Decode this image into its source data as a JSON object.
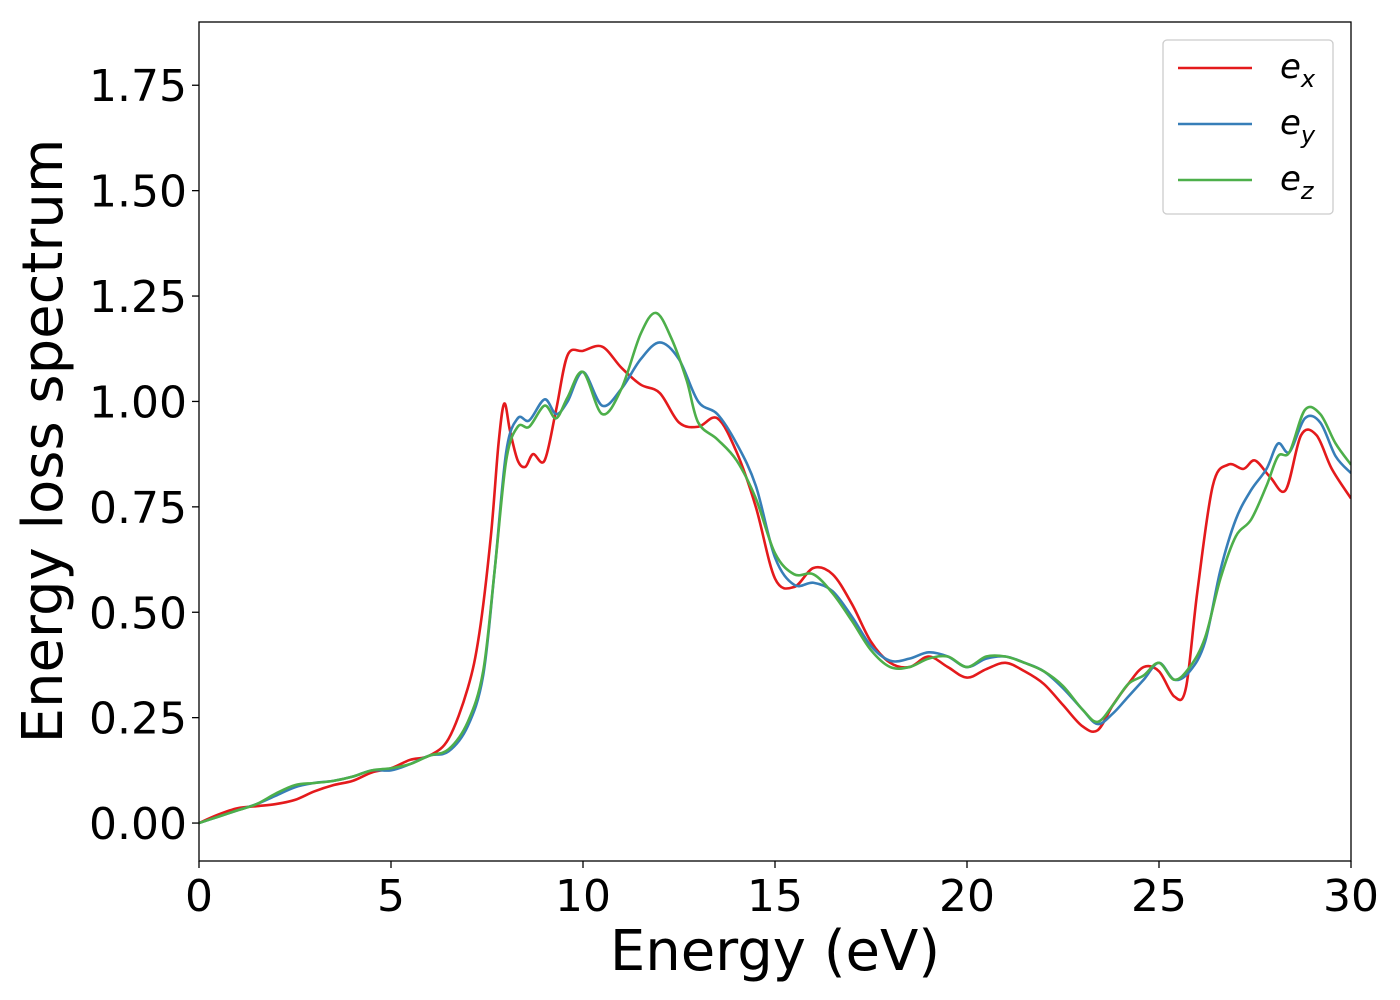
{
  "chart_data": {
    "type": "line",
    "title": "",
    "xlabel": "Energy (eV)",
    "ylabel": "Energy loss spectrum",
    "xlim": [
      0,
      30
    ],
    "ylim": [
      -0.09,
      1.9
    ],
    "xticks": [
      0,
      5,
      10,
      15,
      20,
      25,
      30
    ],
    "xtick_labels": [
      "0",
      "5",
      "10",
      "15",
      "20",
      "25",
      "30"
    ],
    "yticks": [
      0.0,
      0.25,
      0.5,
      0.75,
      1.0,
      1.25,
      1.5,
      1.75
    ],
    "ytick_labels": [
      "0.00",
      "0.25",
      "0.50",
      "0.75",
      "1.00",
      "1.25",
      "1.50",
      "1.75"
    ],
    "grid": false,
    "legend_position": "top-right",
    "series": [
      {
        "name": "e_x",
        "label_main": "e",
        "label_sub": "x",
        "color": "#e41a1c",
        "x": [
          0,
          0.5,
          1,
          1.5,
          2,
          2.5,
          3,
          3.5,
          4,
          4.5,
          5,
          5.5,
          6,
          6.5,
          7,
          7.3,
          7.6,
          7.8,
          7.95,
          8.1,
          8.3,
          8.5,
          8.7,
          9,
          9.3,
          9.6,
          10,
          10.5,
          11,
          11.5,
          12,
          12.5,
          13,
          13.5,
          14,
          14.5,
          15,
          15.5,
          16,
          16.5,
          17,
          17.5,
          18,
          18.5,
          19,
          19.5,
          20,
          20.5,
          21,
          21.5,
          22,
          22.5,
          23,
          23.4,
          23.8,
          24.2,
          24.6,
          25,
          25.4,
          25.7,
          26,
          26.4,
          26.8,
          27.2,
          27.5,
          27.9,
          28.3,
          28.7,
          29.1,
          29.5,
          30
        ],
        "y": [
          0.0,
          0.02,
          0.035,
          0.04,
          0.045,
          0.055,
          0.075,
          0.09,
          0.1,
          0.12,
          0.13,
          0.15,
          0.16,
          0.2,
          0.32,
          0.45,
          0.68,
          0.9,
          0.995,
          0.93,
          0.86,
          0.845,
          0.875,
          0.86,
          0.98,
          1.11,
          1.12,
          1.13,
          1.08,
          1.04,
          1.02,
          0.95,
          0.94,
          0.96,
          0.88,
          0.75,
          0.58,
          0.56,
          0.605,
          0.59,
          0.52,
          0.43,
          0.38,
          0.37,
          0.395,
          0.37,
          0.345,
          0.365,
          0.38,
          0.36,
          0.33,
          0.28,
          0.23,
          0.22,
          0.28,
          0.33,
          0.37,
          0.36,
          0.3,
          0.32,
          0.55,
          0.8,
          0.85,
          0.84,
          0.86,
          0.82,
          0.79,
          0.92,
          0.92,
          0.84,
          0.77
        ]
      },
      {
        "name": "e_y",
        "label_main": "e",
        "label_sub": "y",
        "color": "#377eb8",
        "x": [
          0,
          0.5,
          1,
          1.5,
          2,
          2.5,
          3,
          3.5,
          4,
          4.5,
          5,
          5.5,
          6,
          6.5,
          7,
          7.4,
          7.7,
          8,
          8.3,
          8.6,
          9,
          9.3,
          9.6,
          10,
          10.5,
          11,
          11.5,
          12,
          12.5,
          13,
          13.5,
          14,
          14.5,
          15,
          15.5,
          16,
          16.5,
          17,
          17.5,
          18,
          18.5,
          19,
          19.5,
          20,
          20.5,
          21,
          21.5,
          22,
          22.5,
          23,
          23.4,
          23.8,
          24.2,
          24.6,
          25,
          25.4,
          25.8,
          26.2,
          26.6,
          27,
          27.4,
          27.8,
          28.1,
          28.4,
          28.8,
          29.2,
          29.6,
          30
        ],
        "y": [
          0.0,
          0.015,
          0.03,
          0.045,
          0.065,
          0.085,
          0.095,
          0.1,
          0.11,
          0.125,
          0.125,
          0.14,
          0.16,
          0.17,
          0.23,
          0.35,
          0.6,
          0.88,
          0.96,
          0.955,
          1.005,
          0.97,
          1.0,
          1.07,
          0.99,
          1.03,
          1.1,
          1.14,
          1.1,
          1.0,
          0.97,
          0.9,
          0.8,
          0.63,
          0.565,
          0.57,
          0.55,
          0.49,
          0.42,
          0.385,
          0.39,
          0.405,
          0.395,
          0.37,
          0.39,
          0.395,
          0.38,
          0.36,
          0.32,
          0.27,
          0.235,
          0.26,
          0.3,
          0.34,
          0.38,
          0.34,
          0.36,
          0.43,
          0.6,
          0.72,
          0.79,
          0.84,
          0.9,
          0.88,
          0.96,
          0.95,
          0.87,
          0.83
        ]
      },
      {
        "name": "e_z",
        "label_main": "e",
        "label_sub": "z",
        "color": "#4daf4a",
        "x": [
          0,
          0.5,
          1,
          1.5,
          2,
          2.5,
          3,
          3.5,
          4,
          4.5,
          5,
          5.5,
          6,
          6.5,
          7,
          7.4,
          7.7,
          8,
          8.3,
          8.6,
          9,
          9.3,
          9.6,
          10,
          10.5,
          11,
          11.5,
          11.9,
          12.3,
          12.7,
          13,
          13.5,
          14,
          14.5,
          15,
          15.5,
          16,
          16.5,
          17,
          17.5,
          18,
          18.5,
          19,
          19.5,
          20,
          20.5,
          21,
          21.5,
          22,
          22.5,
          23,
          23.4,
          23.8,
          24.2,
          24.6,
          25,
          25.4,
          25.8,
          26.2,
          26.6,
          27,
          27.4,
          27.8,
          28.1,
          28.4,
          28.8,
          29.2,
          29.6,
          30
        ],
        "y": [
          0.0,
          0.015,
          0.03,
          0.045,
          0.07,
          0.09,
          0.095,
          0.1,
          0.11,
          0.125,
          0.13,
          0.14,
          0.16,
          0.175,
          0.24,
          0.36,
          0.6,
          0.86,
          0.94,
          0.94,
          0.99,
          0.96,
          1.01,
          1.07,
          0.97,
          1.03,
          1.16,
          1.21,
          1.15,
          1.05,
          0.95,
          0.91,
          0.86,
          0.77,
          0.64,
          0.59,
          0.59,
          0.545,
          0.48,
          0.41,
          0.37,
          0.37,
          0.39,
          0.395,
          0.37,
          0.395,
          0.395,
          0.38,
          0.36,
          0.325,
          0.27,
          0.24,
          0.28,
          0.33,
          0.35,
          0.38,
          0.34,
          0.37,
          0.44,
          0.58,
          0.68,
          0.72,
          0.8,
          0.87,
          0.88,
          0.98,
          0.97,
          0.9,
          0.85
        ]
      }
    ]
  }
}
